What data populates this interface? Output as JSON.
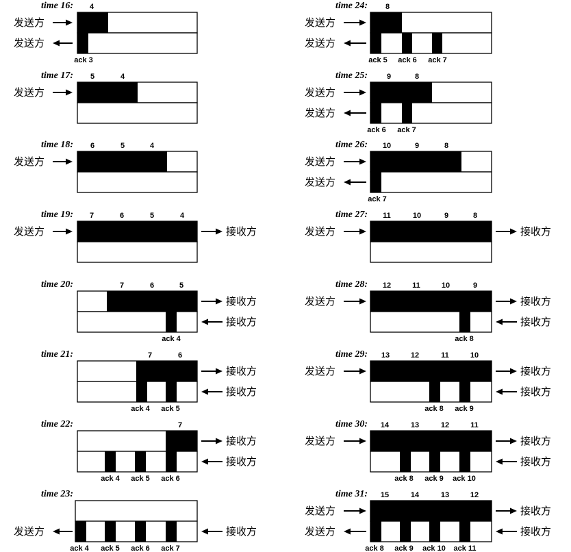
{
  "labels": {
    "sender": "发送方",
    "receiver": "接收方"
  },
  "panels": [
    {
      "time": "time 16:",
      "segs": [
        "4"
      ],
      "acks": [
        "ack 3"
      ]
    },
    {
      "time": "time 17:",
      "segs": [
        "5",
        "4"
      ],
      "acks": []
    },
    {
      "time": "time 18:",
      "segs": [
        "6",
        "5",
        "4"
      ],
      "acks": []
    },
    {
      "time": "time 19:",
      "segs": [
        "7",
        "6",
        "5",
        "4"
      ],
      "acks": []
    },
    {
      "time": "time 20:",
      "segs": [
        "7",
        "6",
        "5"
      ],
      "acks": [
        "ack 4"
      ]
    },
    {
      "time": "time 21:",
      "segs": [
        "7",
        "6"
      ],
      "acks": [
        "ack 4",
        "ack 5"
      ]
    },
    {
      "time": "time 22:",
      "segs": [
        "7"
      ],
      "acks": [
        "ack 4",
        "ack 5",
        "ack 6"
      ]
    },
    {
      "time": "time 23:",
      "segs": [],
      "acks": [
        "ack 4",
        "ack 5",
        "ack 6",
        "ack 7"
      ]
    },
    {
      "time": "time 24:",
      "segs": [
        "8"
      ],
      "acks": [
        "ack 5",
        "ack 6",
        "ack 7"
      ]
    },
    {
      "time": "time 25:",
      "segs": [
        "9",
        "8"
      ],
      "acks": [
        "ack 6",
        "ack 7"
      ]
    },
    {
      "time": "time 26:",
      "segs": [
        "10",
        "9",
        "8"
      ],
      "acks": [
        "ack 7"
      ]
    },
    {
      "time": "time 27:",
      "segs": [
        "11",
        "10",
        "9",
        "8"
      ],
      "acks": []
    },
    {
      "time": "time 28:",
      "segs": [
        "12",
        "11",
        "10",
        "9"
      ],
      "acks": [
        "ack 8"
      ]
    },
    {
      "time": "time 29:",
      "segs": [
        "13",
        "12",
        "11",
        "10"
      ],
      "acks": [
        "ack 8",
        "ack 9"
      ]
    },
    {
      "time": "time 30:",
      "segs": [
        "14",
        "13",
        "12",
        "11"
      ],
      "acks": [
        "ack 8",
        "ack 9",
        "ack 10"
      ]
    },
    {
      "time": "time 31:",
      "segs": [
        "15",
        "14",
        "13",
        "12"
      ],
      "acks": [
        "ack 8",
        "ack 9",
        "ack 10",
        "ack 11"
      ]
    }
  ]
}
